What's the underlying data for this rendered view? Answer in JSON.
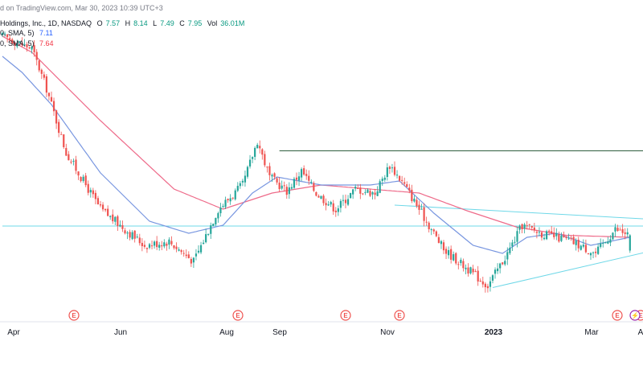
{
  "header": {
    "published": "d on TradingView.com, Mar 30, 2023 10:39 UTC+3"
  },
  "symbol": {
    "name": "Holdings, Inc., 1D, NASDAQ",
    "ohlc": [
      {
        "label": "O",
        "value": "7.57"
      },
      {
        "label": "H",
        "value": "8.14"
      },
      {
        "label": "L",
        "value": "7.49"
      },
      {
        "label": "C",
        "value": "7.95"
      }
    ],
    "volume_label": "Vol",
    "volume": "36.01M"
  },
  "indicators": [
    {
      "label": "0, SMA, 5)",
      "value": "7.11",
      "color": "#2962ff"
    },
    {
      "label": "0, SMA, 5)",
      "value": "7.64",
      "color": "#f23645"
    }
  ],
  "colors": {
    "up": "#26a69a",
    "down": "#ef5350",
    "sma_short": "#7896e0",
    "sma_long": "#ee6b8a",
    "resistance": "#2e5e3e",
    "support": "#6fd8e8",
    "earnings": "#ef5350",
    "dividend": "#9c27b0"
  },
  "chart_data": {
    "type": "candlestick",
    "x_ticks": [
      "Apr",
      "Jun",
      "Aug",
      "Sep",
      "Nov",
      "2023",
      "Mar",
      "A"
    ],
    "y_range": [
      5.8,
      13.8
    ],
    "markers": [
      {
        "kind": "earnings",
        "glyph": "E",
        "date": "Apr"
      },
      {
        "kind": "earnings",
        "glyph": "E",
        "date": "Jun"
      },
      {
        "kind": "earnings",
        "glyph": "E",
        "date": "Aug"
      },
      {
        "kind": "earnings",
        "glyph": "E",
        "date": "Oct"
      },
      {
        "kind": "earnings",
        "glyph": "E",
        "date": "Nov"
      },
      {
        "kind": "earnings",
        "glyph": "E",
        "date": "Mar"
      },
      {
        "kind": "dividend",
        "glyph": "⚡",
        "date": "Apr"
      }
    ],
    "key_points": [
      {
        "day": 0,
        "price": 12.9
      },
      {
        "day": 12,
        "price": 12.6
      },
      {
        "day": 18,
        "price": 11.6
      },
      {
        "day": 26,
        "price": 10.0
      },
      {
        "day": 40,
        "price": 8.6
      },
      {
        "day": 58,
        "price": 7.7
      },
      {
        "day": 68,
        "price": 7.8
      },
      {
        "day": 78,
        "price": 7.3
      },
      {
        "day": 88,
        "price": 8.6
      },
      {
        "day": 98,
        "price": 9.2
      },
      {
        "day": 104,
        "price": 10.3
      },
      {
        "day": 109,
        "price": 9.4
      },
      {
        "day": 116,
        "price": 9.05
      },
      {
        "day": 122,
        "price": 9.55
      },
      {
        "day": 128,
        "price": 9.0
      },
      {
        "day": 136,
        "price": 8.6
      },
      {
        "day": 144,
        "price": 9.1
      },
      {
        "day": 152,
        "price": 9.0
      },
      {
        "day": 158,
        "price": 9.7
      },
      {
        "day": 164,
        "price": 9.2
      },
      {
        "day": 172,
        "price": 8.4
      },
      {
        "day": 180,
        "price": 7.6
      },
      {
        "day": 190,
        "price": 7.1
      },
      {
        "day": 198,
        "price": 6.7
      },
      {
        "day": 206,
        "price": 7.5
      },
      {
        "day": 212,
        "price": 8.2
      },
      {
        "day": 220,
        "price": 8.0
      },
      {
        "day": 232,
        "price": 7.8
      },
      {
        "day": 242,
        "price": 7.5
      },
      {
        "day": 250,
        "price": 8.1
      },
      {
        "day": 256,
        "price": 7.95
      }
    ],
    "sma_short_points": [
      {
        "day": 0,
        "price": 12.4
      },
      {
        "day": 8,
        "price": 12.0
      },
      {
        "day": 20,
        "price": 11.2
      },
      {
        "day": 40,
        "price": 9.5
      },
      {
        "day": 60,
        "price": 8.3
      },
      {
        "day": 76,
        "price": 8.0
      },
      {
        "day": 90,
        "price": 8.2
      },
      {
        "day": 102,
        "price": 9.0
      },
      {
        "day": 112,
        "price": 9.4
      },
      {
        "day": 130,
        "price": 9.2
      },
      {
        "day": 150,
        "price": 9.2
      },
      {
        "day": 162,
        "price": 9.3
      },
      {
        "day": 176,
        "price": 8.5
      },
      {
        "day": 192,
        "price": 7.7
      },
      {
        "day": 204,
        "price": 7.5
      },
      {
        "day": 214,
        "price": 7.9
      },
      {
        "day": 226,
        "price": 8.0
      },
      {
        "day": 240,
        "price": 7.7
      },
      {
        "day": 256,
        "price": 7.9
      }
    ],
    "sma_long_points": [
      {
        "day": 0,
        "price": 12.9
      },
      {
        "day": 12,
        "price": 12.5
      },
      {
        "day": 40,
        "price": 10.8
      },
      {
        "day": 70,
        "price": 9.1
      },
      {
        "day": 90,
        "price": 8.6
      },
      {
        "day": 110,
        "price": 9.0
      },
      {
        "day": 130,
        "price": 9.2
      },
      {
        "day": 150,
        "price": 9.1
      },
      {
        "day": 170,
        "price": 9.0
      },
      {
        "day": 190,
        "price": 8.55
      },
      {
        "day": 210,
        "price": 8.15
      },
      {
        "day": 230,
        "price": 7.95
      },
      {
        "day": 256,
        "price": 7.9
      }
    ],
    "trendlines": [
      {
        "kind": "resistance",
        "from": {
          "day": 113,
          "price": 10.05
        },
        "to": {
          "day": 264,
          "price": 10.05
        }
      },
      {
        "kind": "support",
        "from": {
          "day": 0,
          "price": 8.18
        },
        "to": {
          "day": 264,
          "price": 8.18
        }
      },
      {
        "kind": "support",
        "from": {
          "day": 200,
          "price": 6.65
        },
        "to": {
          "day": 264,
          "price": 7.55
        }
      },
      {
        "kind": "support",
        "from": {
          "day": 160,
          "price": 8.7
        },
        "to": {
          "day": 264,
          "price": 8.35
        }
      }
    ]
  }
}
